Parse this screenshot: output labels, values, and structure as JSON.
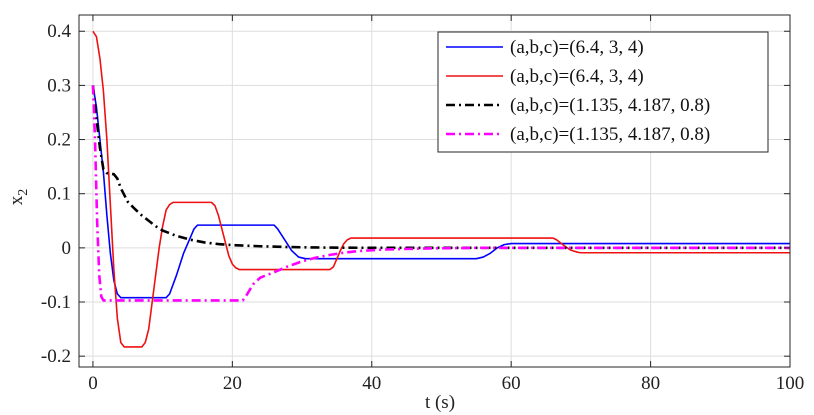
{
  "chart_data": {
    "type": "line",
    "xlabel": "t (s)",
    "ylabel": "x",
    "ylabel_subscript": "2",
    "xlim": [
      -2,
      100
    ],
    "ylim": [
      -0.22,
      0.43
    ],
    "xticks": [
      0,
      20,
      40,
      60,
      80,
      100
    ],
    "yticks": [
      -0.2,
      -0.1,
      0,
      0.1,
      0.2,
      0.3,
      0.4
    ],
    "xtick_labels": [
      "0",
      "20",
      "40",
      "60",
      "80",
      "100"
    ],
    "ytick_labels": [
      "-0.2",
      "-0.1",
      "0",
      "0.1",
      "0.2",
      "0.3",
      "0.4"
    ],
    "grid": true,
    "legend_position": "top-right",
    "series": [
      {
        "name": "(a,b,c)=(6.4, 3, 4)",
        "color": "#0000ff",
        "style": "solid",
        "points": [
          [
            0,
            0.3
          ],
          [
            0.5,
            0.26
          ],
          [
            1,
            0.2
          ],
          [
            1.5,
            0.14
          ],
          [
            2,
            0.06
          ],
          [
            2.5,
            -0.01
          ],
          [
            3,
            -0.06
          ],
          [
            3.5,
            -0.085
          ],
          [
            4,
            -0.092
          ],
          [
            10.5,
            -0.092
          ],
          [
            11,
            -0.085
          ],
          [
            12,
            -0.05
          ],
          [
            13,
            -0.01
          ],
          [
            14,
            0.02
          ],
          [
            14.5,
            0.035
          ],
          [
            15,
            0.042
          ],
          [
            26,
            0.042
          ],
          [
            26.5,
            0.035
          ],
          [
            27.5,
            0.015
          ],
          [
            28.5,
            -0.005
          ],
          [
            29.5,
            -0.017
          ],
          [
            30.5,
            -0.02
          ],
          [
            55,
            -0.02
          ],
          [
            56,
            -0.017
          ],
          [
            57,
            -0.01
          ],
          [
            58,
            0.0
          ],
          [
            59,
            0.006
          ],
          [
            60,
            0.008
          ],
          [
            100,
            0.008
          ]
        ]
      },
      {
        "name": "(a,b,c)=(6.4, 3, 4)",
        "color": "#ee1111",
        "style": "solid",
        "points": [
          [
            0,
            0.4
          ],
          [
            0.5,
            0.39
          ],
          [
            1,
            0.35
          ],
          [
            1.5,
            0.29
          ],
          [
            2,
            0.2
          ],
          [
            2.5,
            0.08
          ],
          [
            3,
            -0.04
          ],
          [
            3.5,
            -0.13
          ],
          [
            4,
            -0.175
          ],
          [
            4.5,
            -0.183
          ],
          [
            7,
            -0.183
          ],
          [
            7.5,
            -0.175
          ],
          [
            8,
            -0.15
          ],
          [
            8.5,
            -0.1
          ],
          [
            9,
            -0.05
          ],
          [
            9.5,
            0.0
          ],
          [
            10,
            0.04
          ],
          [
            10.5,
            0.07
          ],
          [
            11,
            0.08
          ],
          [
            11.5,
            0.084
          ],
          [
            17,
            0.084
          ],
          [
            17.5,
            0.078
          ],
          [
            18,
            0.06
          ],
          [
            18.5,
            0.035
          ],
          [
            19,
            0.01
          ],
          [
            19.5,
            -0.015
          ],
          [
            20,
            -0.03
          ],
          [
            20.5,
            -0.037
          ],
          [
            21,
            -0.04
          ],
          [
            34,
            -0.04
          ],
          [
            34.5,
            -0.035
          ],
          [
            35,
            -0.02
          ],
          [
            35.5,
            -0.005
          ],
          [
            36,
            0.008
          ],
          [
            36.5,
            0.015
          ],
          [
            37,
            0.018
          ],
          [
            66,
            0.018
          ],
          [
            66.5,
            0.015
          ],
          [
            67.5,
            0.005
          ],
          [
            68.5,
            -0.004
          ],
          [
            69.5,
            -0.008
          ],
          [
            70,
            -0.009
          ],
          [
            100,
            -0.009
          ]
        ]
      },
      {
        "name": "(a,b,c)=(1.135, 4.187, 0.8)",
        "color": "#000000",
        "style": "dashdot",
        "points": [
          [
            0,
            0.3
          ],
          [
            0.5,
            0.24
          ],
          [
            1,
            0.185
          ],
          [
            1.5,
            0.145
          ],
          [
            2,
            0.138
          ],
          [
            3,
            0.136
          ],
          [
            3.5,
            0.128
          ],
          [
            4,
            0.11
          ],
          [
            5,
            0.085
          ],
          [
            6,
            0.072
          ],
          [
            7,
            0.06
          ],
          [
            8,
            0.05
          ],
          [
            9,
            0.04
          ],
          [
            10,
            0.032
          ],
          [
            12,
            0.022
          ],
          [
            14,
            0.015
          ],
          [
            16,
            0.01
          ],
          [
            18,
            0.007
          ],
          [
            20,
            0.005
          ],
          [
            24,
            0.003
          ],
          [
            28,
            0.0015
          ],
          [
            32,
            0.0007
          ],
          [
            36,
            0.0003
          ],
          [
            40,
            0.0001
          ],
          [
            50,
            0.0
          ],
          [
            100,
            0.0
          ]
        ]
      },
      {
        "name": "(a,b,c)=(1.135, 4.187, 0.8)",
        "color": "#ff00ff",
        "style": "dashdot",
        "points": [
          [
            0,
            0.3
          ],
          [
            0.3,
            0.2
          ],
          [
            0.6,
            0.05
          ],
          [
            0.9,
            -0.05
          ],
          [
            1.2,
            -0.09
          ],
          [
            1.5,
            -0.097
          ],
          [
            21.5,
            -0.097
          ],
          [
            22,
            -0.088
          ],
          [
            23,
            -0.067
          ],
          [
            24,
            -0.055
          ],
          [
            26,
            -0.045
          ],
          [
            28,
            -0.034
          ],
          [
            30,
            -0.025
          ],
          [
            32,
            -0.018
          ],
          [
            34,
            -0.013
          ],
          [
            36,
            -0.009
          ],
          [
            38,
            -0.006
          ],
          [
            42,
            -0.003
          ],
          [
            48,
            -0.001
          ],
          [
            55,
            0.0
          ],
          [
            100,
            0.0
          ]
        ]
      }
    ]
  }
}
